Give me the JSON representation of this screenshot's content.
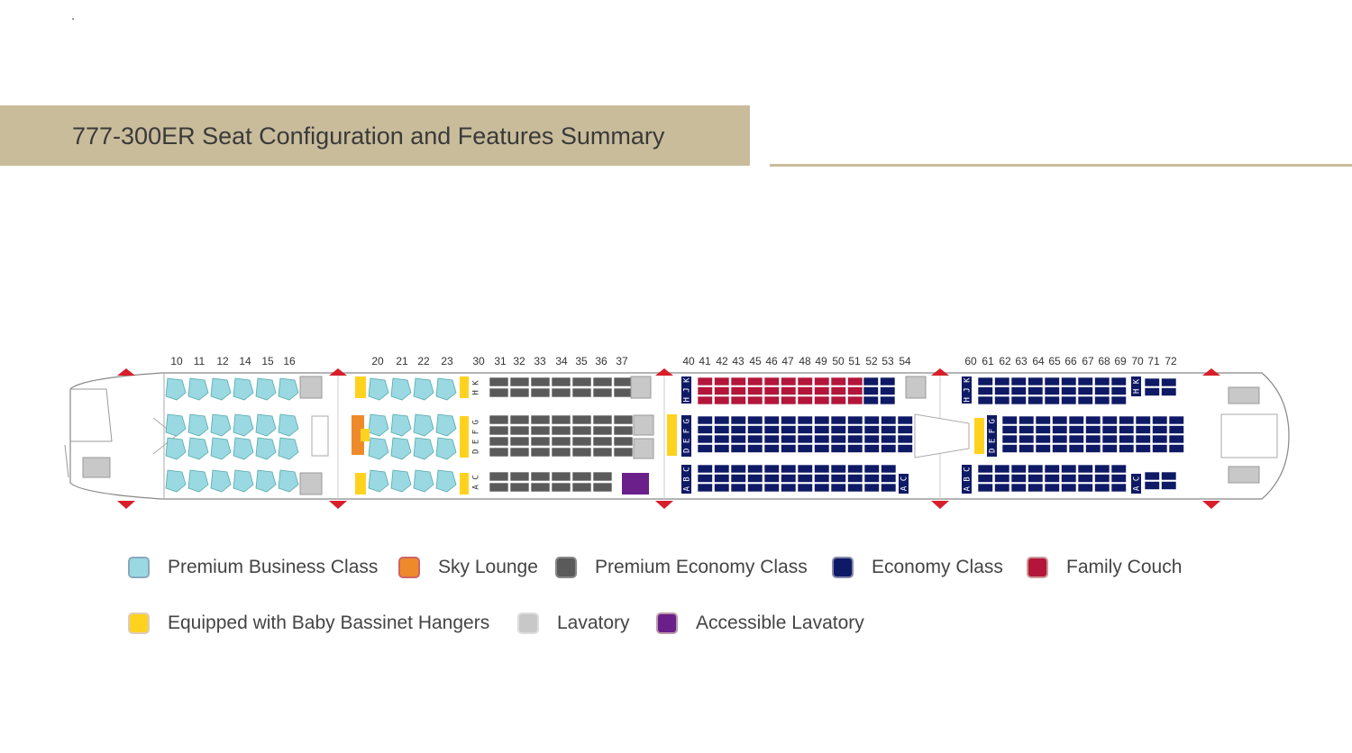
{
  "title": "777-300ER Seat Configuration and Features Summary",
  "rows": {
    "business_a": [
      "10",
      "11",
      "12",
      "14",
      "15",
      "16"
    ],
    "business_b": [
      "20",
      "21",
      "22",
      "23"
    ],
    "premium_economy": [
      "30",
      "31",
      "32",
      "33",
      "34",
      "35",
      "36",
      "37"
    ],
    "economy_a": [
      "40",
      "41",
      "42",
      "43",
      "45",
      "46",
      "47",
      "48",
      "49",
      "50",
      "51",
      "52",
      "53",
      "54"
    ],
    "economy_b": [
      "60",
      "61",
      "62",
      "63",
      "64",
      "65",
      "66",
      "67",
      "68",
      "69",
      "70",
      "71",
      "72"
    ]
  },
  "column_labels": {
    "pe_top": "H K",
    "pe_mid": "D E F G",
    "pe_bot": "A C",
    "ec_top": "H J K",
    "ec_mid": "D E F G",
    "ec_bot": "A B C",
    "ec_bot_short": "A C",
    "ec_top_short": "H K"
  },
  "legend": [
    {
      "label": "Premium Business Class",
      "color": "#9ad8e2",
      "border": "#8ab"
    },
    {
      "label": "Sky Lounge",
      "color": "#ee8a2a",
      "border": "#c66"
    },
    {
      "label": "Premium Economy Class",
      "color": "#5a5a5a",
      "border": "#888"
    },
    {
      "label": "Economy Class",
      "color": "#0f1a66",
      "border": "#88a"
    },
    {
      "label": "Family Couch",
      "color": "#b3163a",
      "border": "#c99"
    },
    {
      "label": "Equipped with Baby Bassinet Hangers",
      "color": "#ffd21f",
      "border": "#dcb"
    },
    {
      "label": "Lavatory",
      "color": "#c8c8c8",
      "border": "#ddd"
    },
    {
      "label": "Accessible Lavatory",
      "color": "#6a1f8a",
      "border": "#b9a"
    }
  ],
  "colors": {
    "business": "#9ad8e2",
    "lounge": "#ee8a2a",
    "premium_economy": "#5a5a5a",
    "economy": "#0f1a66",
    "family": "#b3163a",
    "bassinet": "#ffd21f",
    "lavatory": "#c8c8c8",
    "accessible": "#6a1f8a",
    "exit": "#d81e2a"
  }
}
